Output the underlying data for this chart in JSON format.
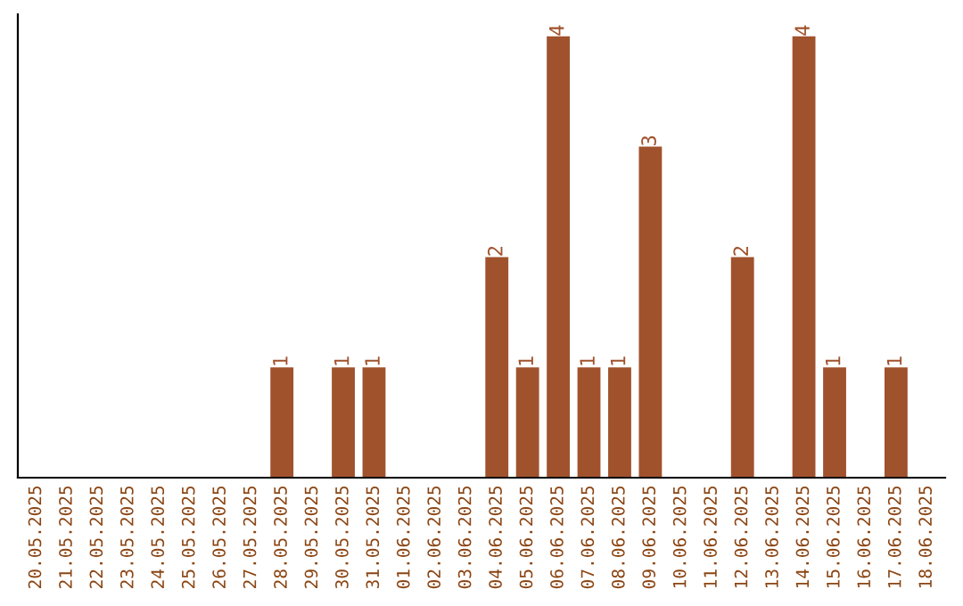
{
  "chart_data": {
    "type": "bar",
    "categories": [
      "20.05.2025",
      "21.05.2025",
      "22.05.2025",
      "23.05.2025",
      "24.05.2025",
      "25.05.2025",
      "26.05.2025",
      "27.05.2025",
      "28.05.2025",
      "29.05.2025",
      "30.05.2025",
      "31.05.2025",
      "01.06.2025",
      "02.06.2025",
      "03.06.2025",
      "04.06.2025",
      "05.06.2025",
      "06.06.2025",
      "07.06.2025",
      "08.06.2025",
      "09.06.2025",
      "10.06.2025",
      "11.06.2025",
      "12.06.2025",
      "13.06.2025",
      "14.06.2025",
      "15.06.2025",
      "16.06.2025",
      "17.06.2025",
      "18.06.2025"
    ],
    "values": [
      0,
      0,
      0,
      0,
      0,
      0,
      0,
      0,
      1,
      0,
      1,
      1,
      0,
      0,
      0,
      2,
      1,
      4,
      1,
      1,
      3,
      0,
      0,
      2,
      0,
      4,
      1,
      0,
      1,
      0
    ],
    "value_labels": [
      null,
      null,
      null,
      null,
      null,
      null,
      null,
      null,
      "1",
      null,
      "1",
      "1",
      null,
      null,
      null,
      "2",
      "1",
      "4",
      "1",
      "1",
      "3",
      null,
      null,
      "2",
      null,
      "4",
      "1",
      null,
      "1",
      null
    ],
    "color": "#a0522d",
    "ylim": [
      0,
      4.2
    ],
    "tick_labels": "x",
    "grid": false,
    "legend": false
  }
}
